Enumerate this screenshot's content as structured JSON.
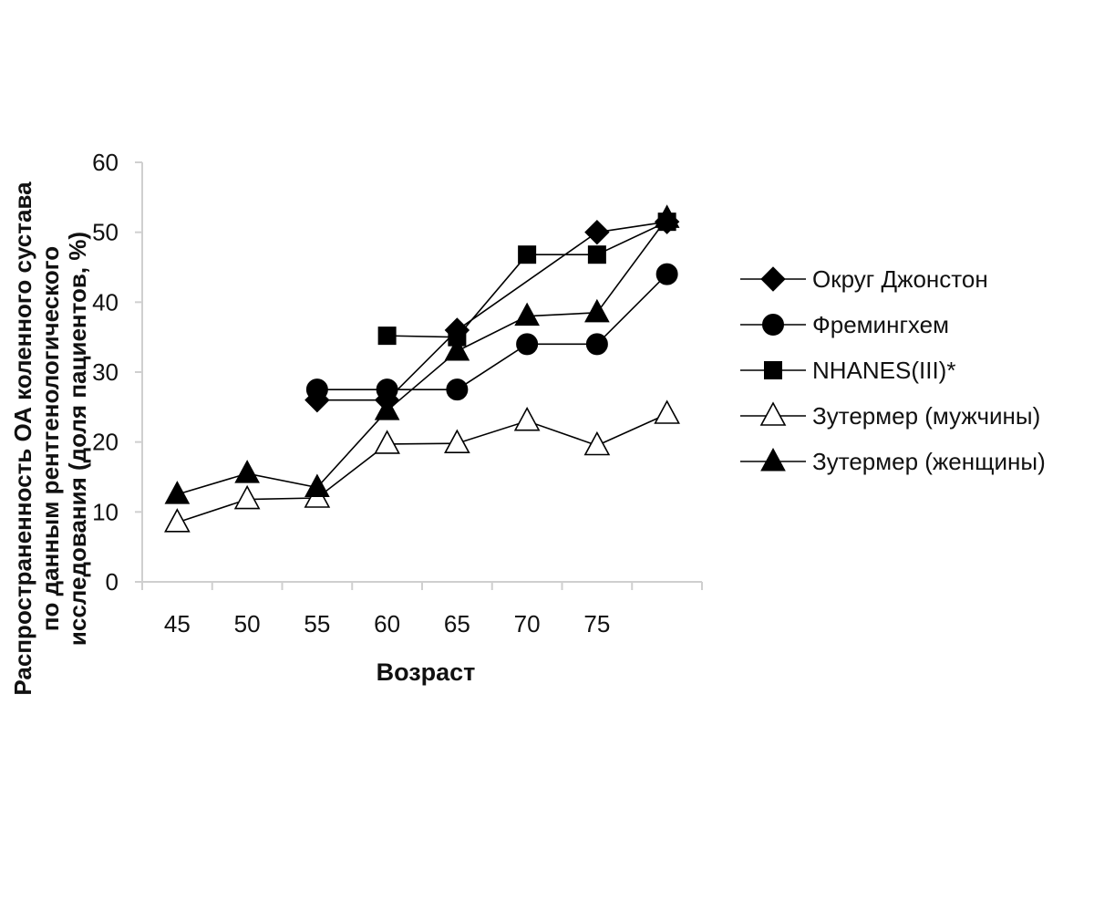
{
  "chart_data": {
    "type": "line",
    "title": "",
    "xlabel": "Возраст",
    "ylabel": [
      "Распространенность ОА коленного сустава",
      "по данным рентгенологического",
      "исследования (доля пациентов, %)"
    ],
    "categories": [
      "45",
      "50",
      "55",
      "60",
      "65",
      "70",
      "75",
      ""
    ],
    "ylim": [
      0,
      60
    ],
    "yticks": [
      "0",
      "10",
      "20",
      "30",
      "40",
      "50",
      "60"
    ],
    "grid": false,
    "legend_position": "right",
    "series": [
      {
        "name": "Округ Джонстон",
        "marker": "diamond",
        "fill": "#000000",
        "values": [
          null,
          null,
          26,
          26,
          36,
          null,
          50,
          51.5
        ]
      },
      {
        "name": "Фремингхем",
        "marker": "circle",
        "fill": "#000000",
        "values": [
          null,
          null,
          27.5,
          27.5,
          27.5,
          34,
          34,
          44
        ]
      },
      {
        "name": "NHANES(III)*",
        "marker": "square",
        "fill": "#000000",
        "values": [
          null,
          null,
          null,
          35.2,
          35,
          46.8,
          46.8,
          51.5
        ]
      },
      {
        "name": "Зутермер (мужчины)",
        "marker": "triangle",
        "fill": "#ffffff",
        "values": [
          8.5,
          11.8,
          12,
          19.7,
          19.8,
          23,
          19.5,
          24
        ]
      },
      {
        "name": "Зутермер (женщины)",
        "marker": "triangle",
        "fill": "#000000",
        "values": [
          12.5,
          15.5,
          13.5,
          24.5,
          33,
          38,
          38.5,
          52
        ]
      }
    ]
  }
}
